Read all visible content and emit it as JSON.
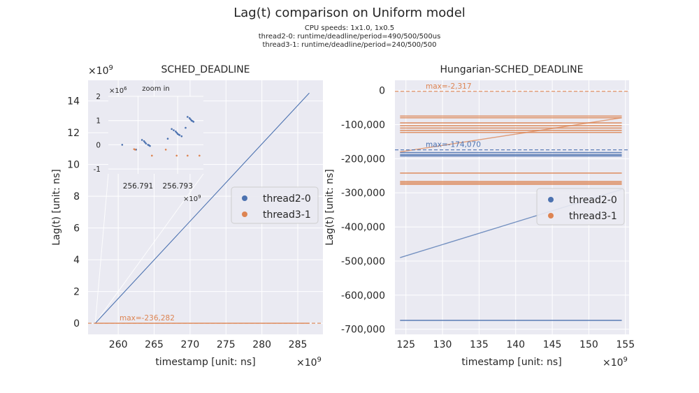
{
  "figure": {
    "title": "Lag(t) comparison on Uniform model",
    "subtitle_lines": [
      "CPU speeds: 1x1.0, 1x0.5",
      "thread2-0: runtime/deadline/period=490/500/500us",
      "thread3-1: runtime/deadline/period=240/500/500"
    ]
  },
  "colors": {
    "thread2-0": "#4c72b0",
    "thread3-1": "#dd8452",
    "axes_bg": "#eaeaf2",
    "grid": "#ffffff"
  },
  "chart_data": [
    {
      "type": "scatter",
      "title": "SCHED_DEADLINE",
      "xlabel": "timestamp [unit: ns]",
      "ylabel": "Lag(t) [unit: ns]",
      "x_scale_label": "×10^9",
      "y_scale_label": "×10^9",
      "xlim": [
        255.8,
        288.5
      ],
      "ylim": [
        -0.7,
        15.3
      ],
      "xticks": [
        260,
        265,
        270,
        275,
        280,
        285
      ],
      "yticks": [
        0,
        2,
        4,
        6,
        8,
        10,
        12,
        14
      ],
      "grid": true,
      "legend_position": "center-right",
      "series": [
        {
          "name": "thread2-0",
          "color": "#4c72b0",
          "x": [
            256.8,
            286.6
          ],
          "y": [
            0.0,
            14.5
          ]
        },
        {
          "name": "thread3-1",
          "color": "#dd8452",
          "x": [
            256.8,
            286.6
          ],
          "y": [
            0.0,
            0.0
          ]
        }
      ],
      "max_lines": [
        {
          "label": "max=-236,282",
          "series": "thread3-1",
          "y": 0.0
        }
      ],
      "inset": {
        "title": "zoom in",
        "x_scale_label": "×10^9",
        "y_scale_label": "×10^6",
        "xlim": [
          256.7895,
          256.7943
        ],
        "ylim": [
          -1.2,
          2.0
        ],
        "xticks": [
          256.791,
          256.793
        ],
        "yticks": [
          -1,
          0,
          1,
          2
        ],
        "series": [
          {
            "name": "thread2-0",
            "x": [
              256.7902,
              256.7909,
              256.7912,
              256.7913,
              256.79135,
              256.7914,
              256.7915,
              256.79155,
              256.7916,
              256.7925,
              256.7927,
              256.7928,
              256.7929,
              256.79295,
              256.793,
              256.79305,
              256.7931,
              256.7932,
              256.7934,
              256.7935,
              256.7936,
              256.79365,
              256.7937,
              256.79375,
              256.7938
            ],
            "y": [
              0.0,
              -0.2,
              0.2,
              0.15,
              0.1,
              0.05,
              0.0,
              -0.02,
              -0.05,
              0.25,
              0.65,
              0.6,
              0.55,
              0.5,
              0.45,
              0.42,
              0.4,
              0.35,
              0.7,
              1.15,
              1.1,
              1.05,
              1.0,
              0.98,
              0.95
            ]
          },
          {
            "name": "thread3-1",
            "x": [
              256.7908,
              256.79085,
              256.7917,
              256.7924,
              256.79295,
              256.7935,
              256.7941
            ],
            "y": [
              -0.18,
              -0.2,
              -0.45,
              -0.2,
              -0.45,
              -0.45,
              -0.45
            ]
          }
        ]
      }
    },
    {
      "type": "scatter",
      "title": "Hungarian-SCHED_DEADLINE",
      "xlabel": "timestamp [unit: ns]",
      "ylabel": "Lag(t) [unit: ns]",
      "x_scale_label": "×10^9",
      "xlim": [
        123.5,
        155.5
      ],
      "ylim": [
        -715000,
        30000
      ],
      "xticks": [
        125,
        130,
        135,
        140,
        145,
        150,
        155
      ],
      "yticks": [
        0,
        -100000,
        -200000,
        -300000,
        -400000,
        -500000,
        -600000,
        -700000
      ],
      "ytick_labels": [
        "0",
        "-100,000",
        "-200,000",
        "-300,000",
        "-400,000",
        "-500,000",
        "-600,000",
        "-700,000"
      ],
      "grid": true,
      "legend_position": "center-right",
      "series": [
        {
          "name": "thread2-0",
          "color": "#4c72b0",
          "bands": [
            -182000,
            -188000,
            -192000,
            -674000
          ],
          "trend": {
            "x": [
              124.2,
              154.5
            ],
            "y": [
              -490000,
              -290000
            ]
          }
        },
        {
          "name": "thread3-1",
          "color": "#dd8452",
          "bands": [
            -75000,
            -80000,
            -95000,
            -103000,
            -110000,
            -117000,
            -123000,
            -242000,
            -267000,
            -271000,
            -275000
          ],
          "trend": {
            "x": [
              124.2,
              154.5
            ],
            "y": [
              -180000,
              -80000
            ]
          }
        }
      ],
      "max_lines": [
        {
          "label": "max=-2,317",
          "series": "thread3-1",
          "y": -2317
        },
        {
          "label": "max=-174,070",
          "series": "thread2-0",
          "y": -174070
        }
      ]
    }
  ]
}
